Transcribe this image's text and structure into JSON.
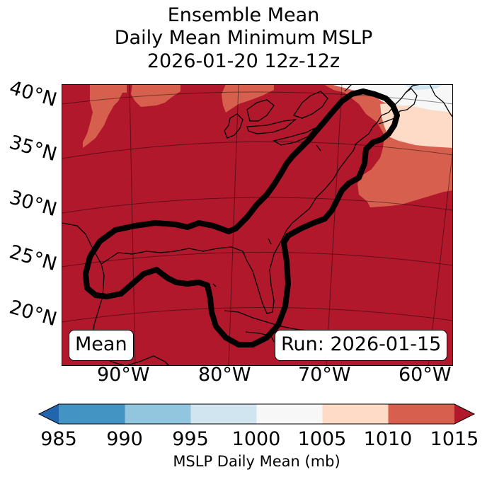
{
  "title": {
    "line1": "Ensemble Mean",
    "line2": "Daily Mean Minimum MSLP",
    "line3": "2026-01-20 12z-12z"
  },
  "lat_labels": [
    "40°N",
    "35°N",
    "30°N",
    "25°N",
    "20°N"
  ],
  "lon_labels": [
    "90°W",
    "80°W",
    "70°W",
    "60°W"
  ],
  "badges": {
    "left": "Mean",
    "right": "Run: 2026-01-15"
  },
  "colorbar": {
    "label": "MSLP Daily Mean (mb)",
    "ticks": [
      "985",
      "990",
      "995",
      "1000",
      "1005",
      "1010",
      "1015"
    ],
    "colors": {
      "under": "#2166ac",
      "985_990": "#4393c3",
      "990_995": "#92c5de",
      "995_1000": "#d1e5f0",
      "1000_1005": "#f7f7f7",
      "1005_1010": "#fddbc7",
      "1010_1015": "#d6604d",
      "over": "#b2182b"
    }
  }
}
